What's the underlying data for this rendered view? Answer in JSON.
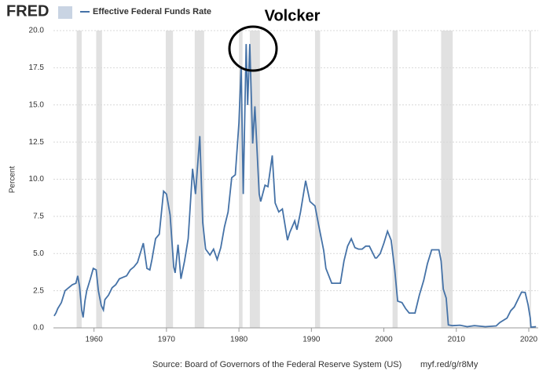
{
  "chart_data": {
    "type": "line",
    "logo": "FRED",
    "y_label": "Percent",
    "annotation": "Volcker",
    "source": "Source: Board of Governors of the Federal Reserve System (US)",
    "link": "myf.red/g/r8My",
    "xlim": [
      1954.4,
      2021.3
    ],
    "xticks": [
      1960,
      1970,
      1980,
      1990,
      2000,
      2010,
      2020
    ],
    "ylim": [
      0,
      20
    ],
    "yticks": [
      {
        "value": 0,
        "label": "0.0"
      },
      {
        "value": 2.5,
        "label": "2.5"
      },
      {
        "value": 5,
        "label": "5.0"
      },
      {
        "value": 7.5,
        "label": "7.5"
      },
      {
        "value": 10,
        "label": "10.0"
      },
      {
        "value": 12.5,
        "label": "12.5"
      },
      {
        "value": 15,
        "label": "15.0"
      },
      {
        "value": 17.5,
        "label": "17.5"
      },
      {
        "value": 20,
        "label": "20.0"
      }
    ],
    "grid": true,
    "recession_color": "#e1e1e1",
    "recessions": [
      [
        1957.6,
        1958.3
      ],
      [
        1960.3,
        1961.1
      ],
      [
        1969.9,
        1970.9
      ],
      [
        1973.9,
        1975.2
      ],
      [
        1980.0,
        1980.5
      ],
      [
        1981.5,
        1982.9
      ],
      [
        1990.5,
        1991.2
      ],
      [
        2001.2,
        2001.9
      ],
      [
        2007.9,
        2009.5
      ],
      [
        2020.1,
        2020.3
      ]
    ],
    "series": [
      {
        "name": "Effective Federal Funds Rate",
        "color": "#4572a7",
        "x": [
          1954.5,
          1954.75,
          1955,
          1955.5,
          1956,
          1956.5,
          1957,
          1957.5,
          1957.75,
          1958,
          1958.3,
          1958.5,
          1958.75,
          1959,
          1959.5,
          1959.9,
          1960.3,
          1960.6,
          1961,
          1961.3,
          1961.5,
          1962,
          1962.5,
          1963,
          1963.5,
          1964,
          1964.5,
          1965,
          1965.5,
          1966,
          1966.8,
          1967.3,
          1967.7,
          1968,
          1968.5,
          1969,
          1969.6,
          1970,
          1970.5,
          1971,
          1971.2,
          1971.6,
          1972,
          1972.5,
          1973,
          1973.6,
          1974,
          1974.6,
          1975,
          1975.4,
          1976,
          1976.5,
          1977,
          1977.5,
          1978,
          1978.5,
          1979,
          1979.5,
          1980,
          1980.3,
          1980.6,
          1981,
          1981.2,
          1981.5,
          1981.9,
          1982.2,
          1982.8,
          1983,
          1983.6,
          1984,
          1984.6,
          1985,
          1985.5,
          1986,
          1986.7,
          1987,
          1987.7,
          1988,
          1988.5,
          1989.2,
          1989.8,
          1990.5,
          1991,
          1991.7,
          1992,
          1992.8,
          1993.5,
          1994,
          1994.5,
          1995,
          1995.5,
          1996,
          1996.5,
          1997,
          1997.5,
          1998,
          1998.8,
          1999,
          1999.5,
          2000,
          2000.5,
          2001,
          2001.5,
          2001.9,
          2002.5,
          2003,
          2003.5,
          2004.3,
          2004.9,
          2005.5,
          2006,
          2006.6,
          2007.6,
          2007.9,
          2008.2,
          2008.6,
          2008.9,
          2009.5,
          2010.5,
          2011.5,
          2012.5,
          2014,
          2015.5,
          2016,
          2017,
          2017.5,
          2018,
          2018.5,
          2019,
          2019.5,
          2019.9,
          2020.2,
          2020.3,
          2021
        ],
        "values": [
          0.8,
          1.0,
          1.3,
          1.7,
          2.5,
          2.7,
          2.9,
          3.0,
          3.5,
          2.8,
          1.2,
          0.7,
          1.8,
          2.5,
          3.3,
          4.0,
          3.9,
          2.5,
          1.5,
          1.2,
          1.9,
          2.2,
          2.7,
          2.9,
          3.3,
          3.4,
          3.5,
          3.9,
          4.1,
          4.4,
          5.7,
          4.0,
          3.9,
          4.6,
          6.0,
          6.3,
          9.2,
          9.0,
          7.6,
          4.1,
          3.7,
          5.6,
          3.3,
          4.5,
          6.0,
          10.7,
          9.0,
          12.9,
          7.1,
          5.3,
          4.9,
          5.3,
          4.6,
          5.4,
          6.8,
          7.8,
          10.1,
          10.3,
          13.8,
          17.6,
          9.0,
          19.1,
          15.0,
          19.1,
          12.4,
          14.9,
          9.0,
          8.5,
          9.6,
          9.5,
          11.6,
          8.4,
          7.8,
          8.0,
          5.9,
          6.4,
          7.2,
          6.6,
          7.8,
          9.9,
          8.5,
          8.2,
          6.9,
          5.2,
          4.0,
          3.0,
          3.0,
          3.0,
          4.5,
          5.5,
          6.0,
          5.4,
          5.3,
          5.3,
          5.5,
          5.5,
          4.7,
          4.7,
          5.0,
          5.7,
          6.5,
          5.9,
          3.9,
          1.8,
          1.7,
          1.3,
          1.0,
          1.0,
          2.2,
          3.2,
          4.3,
          5.25,
          5.25,
          4.5,
          2.6,
          2.0,
          0.2,
          0.15,
          0.18,
          0.08,
          0.15,
          0.08,
          0.13,
          0.36,
          0.66,
          1.15,
          1.41,
          1.91,
          2.4,
          2.38,
          1.55,
          0.65,
          0.05,
          0.08
        ]
      }
    ]
  }
}
